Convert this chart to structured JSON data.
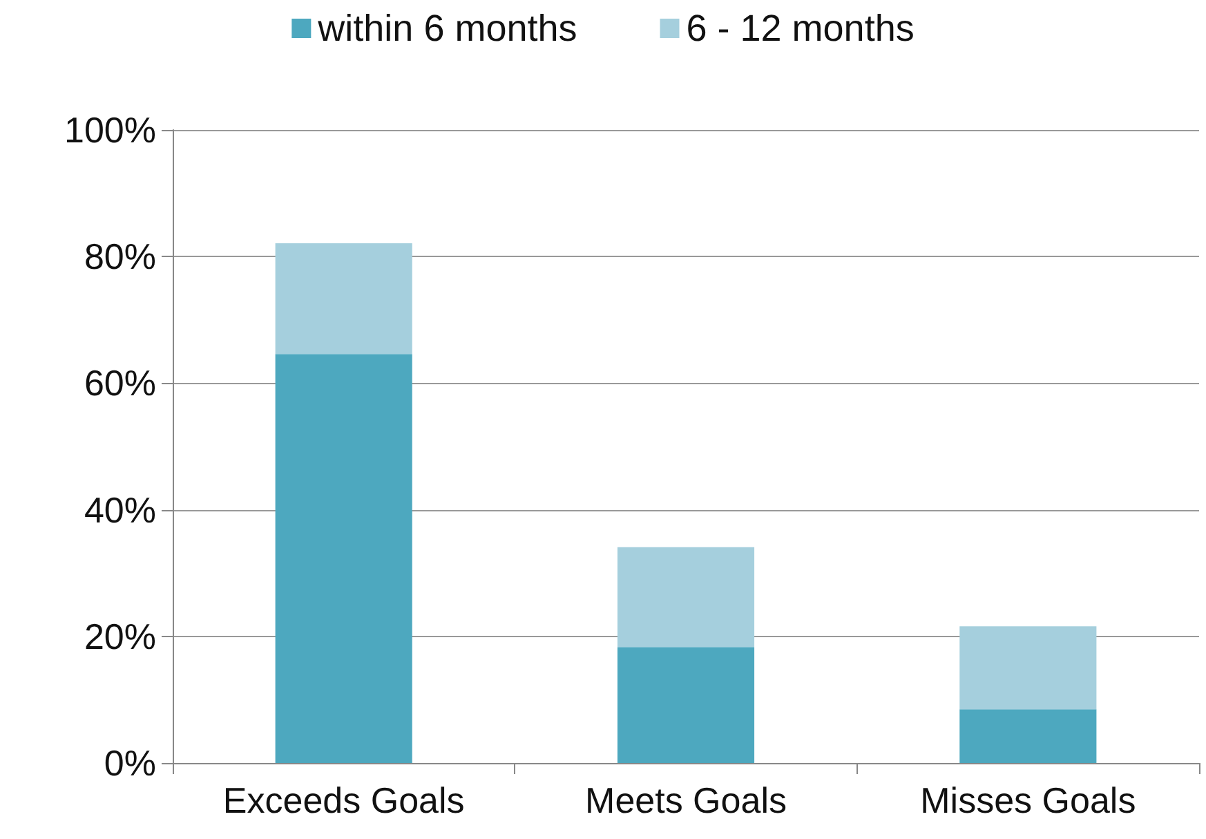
{
  "chart_data": {
    "type": "bar",
    "stacked": true,
    "categories": [
      "Exceeds Goals",
      "Meets Goals",
      "Misses Goals"
    ],
    "series": [
      {
        "name": "within 6 months",
        "color": "#4da8bf",
        "values": [
          64.6,
          18.3,
          8.5
        ]
      },
      {
        "name": "6 - 12 months",
        "color": "#a5cfdd",
        "values": [
          17.5,
          15.8,
          13.1
        ]
      }
    ],
    "ylim": [
      0,
      100
    ],
    "yticks": [
      {
        "value": 0,
        "label": "0%"
      },
      {
        "value": 20,
        "label": "20%"
      },
      {
        "value": 40,
        "label": "40%"
      },
      {
        "value": 60,
        "label": "60%"
      },
      {
        "value": 80,
        "label": "80%"
      },
      {
        "value": 100,
        "label": "100%"
      }
    ],
    "grid": "y",
    "legend": "top"
  }
}
